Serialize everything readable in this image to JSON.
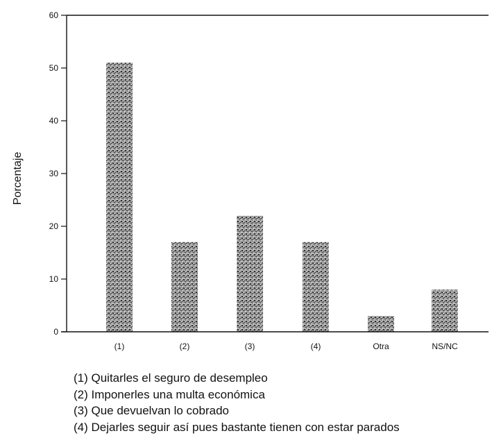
{
  "chart_data": {
    "type": "bar",
    "title": "",
    "xlabel": "",
    "ylabel": "Porcentaje",
    "categories": [
      "(1)",
      "(2)",
      "(3)",
      "(4)",
      "Otra",
      "NS/NC"
    ],
    "values": [
      51,
      17,
      22,
      17,
      3,
      8
    ],
    "ylim": [
      0,
      60
    ],
    "yticks": [
      0,
      10,
      20,
      30,
      40,
      50,
      60
    ],
    "grid": false,
    "legend_position": "bottom-left"
  },
  "legend_items": [
    "(1) Quitarles el seguro de desempleo",
    "(2) Imponerles una multa económica",
    "(3) Que devuelvan lo cobrado",
    "(4) Dejarles seguir así pues bastante tienen con estar parados"
  ],
  "colors": {
    "axis": "#111111",
    "bar_dark": "#3a3a3a",
    "bar_light": "#f2f2f2"
  }
}
